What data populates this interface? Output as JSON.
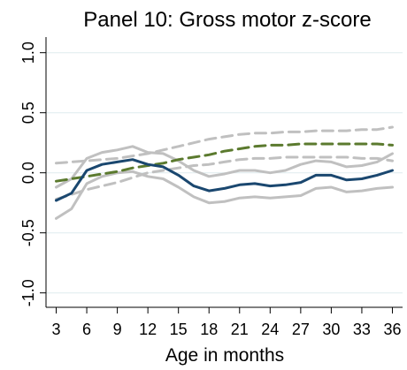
{
  "chart_data": {
    "type": "line",
    "title": "Panel 10: Gross motor z-score",
    "x_label": "Age in months",
    "x": [
      3,
      4.5,
      6,
      7.5,
      9,
      10.5,
      12,
      13.5,
      15,
      16.5,
      18,
      19.5,
      21,
      22.5,
      24,
      25.5,
      27,
      28.5,
      30,
      31.5,
      33,
      34.5,
      36
    ],
    "xlim": [
      2,
      37
    ],
    "xticks": [
      3,
      6,
      9,
      12,
      15,
      18,
      21,
      24,
      27,
      30,
      33,
      36
    ],
    "ylim": [
      -1.12,
      1.13
    ],
    "yticks": [
      {
        "value": -1,
        "label": "-1.0"
      },
      {
        "value": -0.5,
        "label": "-0.5"
      },
      {
        "value": 0,
        "label": "0.0"
      },
      {
        "value": 0.5,
        "label": "0.5"
      },
      {
        "value": 1,
        "label": "1.0"
      }
    ],
    "grid": true,
    "series": [
      {
        "color": "#c0c0c0",
        "dashed": false,
        "values": [
          -0.12,
          -0.05,
          0.12,
          0.17,
          0.19,
          0.22,
          0.17,
          0.16,
          0.1,
          0.02,
          -0.03,
          -0.01,
          0.02,
          0.02,
          0.0,
          0.02,
          0.07,
          0.1,
          0.09,
          0.05,
          0.06,
          0.09,
          0.16
        ]
      },
      {
        "color": "#c0c0c0",
        "dashed": false,
        "values": [
          -0.38,
          -0.3,
          -0.09,
          -0.03,
          0.0,
          0.01,
          -0.03,
          -0.05,
          -0.12,
          -0.2,
          -0.25,
          -0.24,
          -0.21,
          -0.2,
          -0.21,
          -0.2,
          -0.19,
          -0.13,
          -0.12,
          -0.16,
          -0.15,
          -0.13,
          -0.12
        ]
      },
      {
        "color": "#c0c0c0",
        "dashed": true,
        "values": [
          0.08,
          0.09,
          0.1,
          0.11,
          0.12,
          0.14,
          0.16,
          0.19,
          0.22,
          0.25,
          0.28,
          0.3,
          0.32,
          0.33,
          0.33,
          0.34,
          0.34,
          0.35,
          0.35,
          0.35,
          0.36,
          0.36,
          0.38
        ]
      },
      {
        "color": "#c0c0c0",
        "dashed": true,
        "values": [
          -0.22,
          -0.18,
          -0.14,
          -0.11,
          -0.08,
          -0.04,
          0.0,
          0.02,
          0.04,
          0.06,
          0.07,
          0.09,
          0.11,
          0.12,
          0.12,
          0.13,
          0.13,
          0.13,
          0.13,
          0.13,
          0.12,
          0.12,
          0.1
        ]
      },
      {
        "color": "#5b7a2e",
        "dashed": true,
        "values": [
          -0.07,
          -0.05,
          -0.03,
          -0.01,
          0.01,
          0.04,
          0.06,
          0.08,
          0.11,
          0.13,
          0.15,
          0.18,
          0.2,
          0.22,
          0.23,
          0.23,
          0.24,
          0.24,
          0.24,
          0.24,
          0.24,
          0.24,
          0.23
        ]
      },
      {
        "color": "#1a476f",
        "dashed": false,
        "values": [
          -0.23,
          -0.17,
          0.02,
          0.07,
          0.09,
          0.11,
          0.07,
          0.05,
          -0.02,
          -0.11,
          -0.15,
          -0.13,
          -0.1,
          -0.09,
          -0.11,
          -0.1,
          -0.08,
          -0.02,
          -0.02,
          -0.06,
          -0.05,
          -0.02,
          0.02
        ]
      }
    ]
  }
}
